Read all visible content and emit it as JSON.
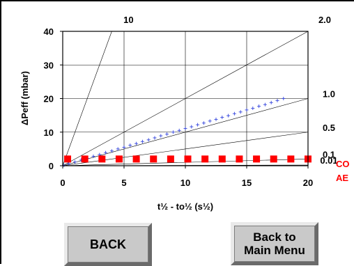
{
  "chart_data": {
    "type": "line",
    "xlabel": "t½ - to½ (s½)",
    "ylabel": "ΔPeff (mbar)",
    "xlim": [
      0,
      20
    ],
    "ylim": [
      0,
      40
    ],
    "x_ticks": [
      "0",
      "5",
      "10",
      "15",
      "20"
    ],
    "y_ticks": [
      "0",
      "10",
      "20",
      "30",
      "40"
    ],
    "grid": true,
    "contours": [
      {
        "label": "10",
        "slope": 10
      },
      {
        "label": "2.0",
        "slope": 2
      },
      {
        "label": "1.0",
        "slope": 1
      },
      {
        "label": "0.5",
        "slope": 0.5
      },
      {
        "label": "0.1",
        "slope": 0.1
      },
      {
        "label": "0.01",
        "slope": 0.01
      }
    ],
    "series": [
      {
        "marker": "plus",
        "color": "#3344dd",
        "x": [
          0.1,
          0.5,
          1.0,
          1.5,
          2.0,
          2.5,
          3.0,
          3.5,
          4.0,
          4.5,
          5.0,
          5.5,
          6.0,
          6.5,
          7.0,
          7.5,
          8.0,
          8.5,
          9.0,
          9.5,
          10.0,
          10.5,
          11.0,
          11.5,
          12.0,
          12.5,
          13.0,
          13.5,
          14.0,
          14.5,
          15.0,
          15.5,
          16.0,
          16.5,
          17.0,
          17.5,
          18.0
        ],
        "y": [
          0.1,
          0.6,
          1.1,
          1.7,
          2.2,
          2.8,
          3.3,
          3.9,
          4.4,
          5.0,
          5.5,
          6.1,
          6.6,
          7.2,
          7.7,
          8.3,
          8.9,
          9.4,
          10.0,
          10.5,
          11.1,
          11.6,
          12.2,
          12.7,
          13.3,
          13.8,
          14.4,
          14.9,
          15.5,
          16.0,
          16.6,
          17.1,
          17.7,
          18.2,
          18.8,
          19.4,
          20.0
        ]
      },
      {
        "marker": "square",
        "color": "#ff0000",
        "x": [
          0.4,
          1.8,
          3.2,
          4.6,
          6.0,
          7.4,
          8.8,
          10.2,
          11.6,
          13.0,
          14.4,
          15.8,
          17.2,
          18.6,
          20.0
        ],
        "y": [
          2,
          2,
          2,
          2,
          2,
          2,
          2,
          2,
          2,
          2,
          2,
          2,
          2,
          2,
          2
        ]
      }
    ]
  },
  "side_labels": [
    "CO",
    "AE"
  ],
  "buttons": {
    "back_label": "BACK",
    "main_menu_label": "Back to\nMain Menu"
  }
}
